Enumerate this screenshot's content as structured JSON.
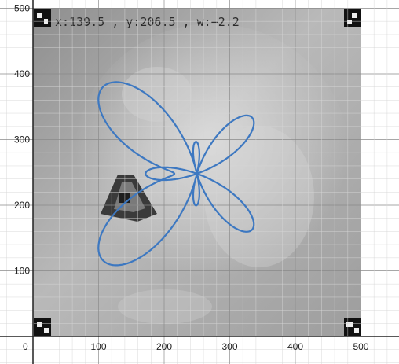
{
  "graph": {
    "x_ticks": [
      "0",
      "100",
      "200",
      "300",
      "400",
      "500"
    ],
    "y_ticks": [
      "100",
      "200",
      "300",
      "400",
      "500"
    ],
    "overlay_readout": "x:139.5 , y:206.5 , w:−2.2",
    "curve_color": "#3d78c1",
    "gridline_color": "#d6d6d6",
    "axis_color": "#222222"
  },
  "chart_data": {
    "type": "line",
    "title": "",
    "xlabel": "",
    "ylabel": "",
    "xlim": [
      -5,
      560
    ],
    "ylim": [
      -40,
      510
    ],
    "grid": true,
    "curve": "butterfly polar curve",
    "center": [
      250,
      248
    ]
  }
}
